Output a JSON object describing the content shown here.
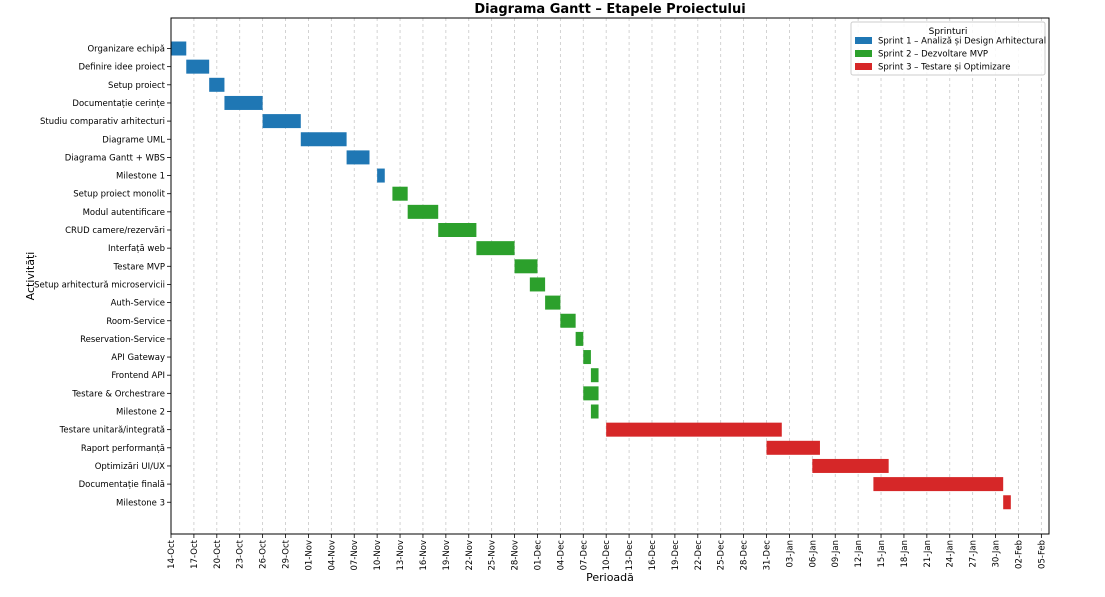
{
  "chart_data": {
    "type": "gantt",
    "title": "Diagrama Gantt – Etapele Proiectului",
    "xlabel": "Perioadă",
    "ylabel": "Activități",
    "grid": "vertical",
    "legend_position": "top-right",
    "legend_title": "Sprinturi",
    "xlim": [
      "2024-10-14",
      "2025-02-06"
    ],
    "x_ticks": [
      "14-Oct",
      "17-Oct",
      "20-Oct",
      "23-Oct",
      "26-Oct",
      "29-Oct",
      "01-Nov",
      "04-Nov",
      "07-Nov",
      "10-Nov",
      "13-Nov",
      "16-Nov",
      "19-Nov",
      "22-Nov",
      "25-Nov",
      "28-Nov",
      "01-Dec",
      "04-Dec",
      "07-Dec",
      "10-Dec",
      "13-Dec",
      "16-Dec",
      "19-Dec",
      "22-Dec",
      "25-Dec",
      "28-Dec",
      "31-Dec",
      "03-Jan",
      "06-Jan",
      "09-Jan",
      "12-Jan",
      "15-Jan",
      "18-Jan",
      "21-Jan",
      "24-Jan",
      "27-Jan",
      "30-Jan",
      "02-Feb",
      "05-Feb"
    ],
    "series": [
      {
        "name": "Sprint 1 – Analiză și Design Arhitectural",
        "color": "#1f77b4"
      },
      {
        "name": "Sprint 2 – Dezvoltare MVP",
        "color": "#2ca02c"
      },
      {
        "name": "Sprint 3 – Testare și Optimizare",
        "color": "#d62728"
      }
    ],
    "tasks": [
      {
        "label": "Organizare echipă",
        "sprint": 0,
        "start": "2024-10-14",
        "end": "2024-10-16"
      },
      {
        "label": "Definire idee proiect",
        "sprint": 0,
        "start": "2024-10-16",
        "end": "2024-10-19"
      },
      {
        "label": "Setup proiect",
        "sprint": 0,
        "start": "2024-10-19",
        "end": "2024-10-21"
      },
      {
        "label": "Documentație cerințe",
        "sprint": 0,
        "start": "2024-10-21",
        "end": "2024-10-26"
      },
      {
        "label": "Studiu comparativ arhitecturi",
        "sprint": 0,
        "start": "2024-10-26",
        "end": "2024-10-31"
      },
      {
        "label": "Diagrame UML",
        "sprint": 0,
        "start": "2024-10-31",
        "end": "2024-11-06"
      },
      {
        "label": "Diagrama Gantt + WBS",
        "sprint": 0,
        "start": "2024-11-06",
        "end": "2024-11-09"
      },
      {
        "label": "Milestone 1",
        "sprint": 0,
        "start": "2024-11-10",
        "end": "2024-11-11"
      },
      {
        "label": "Setup proiect monolit",
        "sprint": 1,
        "start": "2024-11-12",
        "end": "2024-11-14"
      },
      {
        "label": "Modul autentificare",
        "sprint": 1,
        "start": "2024-11-14",
        "end": "2024-11-18"
      },
      {
        "label": "CRUD camere/rezervări",
        "sprint": 1,
        "start": "2024-11-18",
        "end": "2024-11-23"
      },
      {
        "label": "Interfață web",
        "sprint": 1,
        "start": "2024-11-23",
        "end": "2024-11-28"
      },
      {
        "label": "Testare MVP",
        "sprint": 1,
        "start": "2024-11-28",
        "end": "2024-12-01"
      },
      {
        "label": "Setup arhitectură microservicii",
        "sprint": 1,
        "start": "2024-11-30",
        "end": "2024-12-02"
      },
      {
        "label": "Auth-Service",
        "sprint": 1,
        "start": "2024-12-02",
        "end": "2024-12-04"
      },
      {
        "label": "Room-Service",
        "sprint": 1,
        "start": "2024-12-04",
        "end": "2024-12-06"
      },
      {
        "label": "Reservation-Service",
        "sprint": 1,
        "start": "2024-12-06",
        "end": "2024-12-07"
      },
      {
        "label": "API Gateway",
        "sprint": 1,
        "start": "2024-12-07",
        "end": "2024-12-08"
      },
      {
        "label": "Frontend API",
        "sprint": 1,
        "start": "2024-12-08",
        "end": "2024-12-09"
      },
      {
        "label": "Testare & Orchestrare",
        "sprint": 1,
        "start": "2024-12-07",
        "end": "2024-12-09"
      },
      {
        "label": "Milestone 2",
        "sprint": 1,
        "start": "2024-12-08",
        "end": "2024-12-09"
      },
      {
        "label": "Testare unitară/integrată",
        "sprint": 2,
        "start": "2024-12-10",
        "end": "2025-01-02"
      },
      {
        "label": "Raport performanță",
        "sprint": 2,
        "start": "2024-12-31",
        "end": "2025-01-07"
      },
      {
        "label": "Optimizări UI/UX",
        "sprint": 2,
        "start": "2025-01-06",
        "end": "2025-01-16"
      },
      {
        "label": "Documentație finală",
        "sprint": 2,
        "start": "2025-01-14",
        "end": "2025-01-31"
      },
      {
        "label": "Milestone 3",
        "sprint": 2,
        "start": "2025-01-31",
        "end": "2025-02-01"
      }
    ]
  }
}
